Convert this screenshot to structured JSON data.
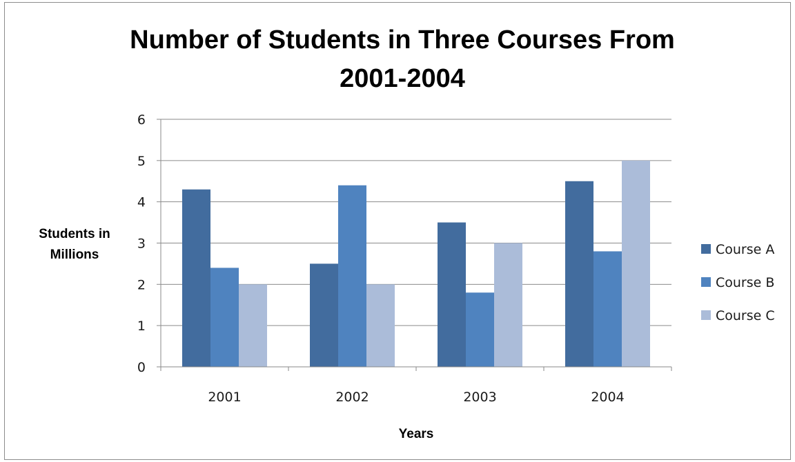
{
  "chart_data": {
    "type": "bar",
    "title_lines": [
      "Number of Students in Three Courses From",
      "2001-2004"
    ],
    "xlabel": "Years",
    "ylabel_lines": [
      "Students in",
      "Millions"
    ],
    "categories": [
      "2001",
      "2002",
      "2003",
      "2004"
    ],
    "series": [
      {
        "name": "Course A",
        "color": "#426c9e",
        "values": [
          4.3,
          2.5,
          3.5,
          4.5
        ]
      },
      {
        "name": "Course B",
        "color": "#4f83bf",
        "values": [
          2.4,
          4.4,
          1.8,
          2.8
        ]
      },
      {
        "name": "Course C",
        "color": "#abbcd9",
        "values": [
          2.0,
          2.0,
          3.0,
          5.0
        ]
      }
    ],
    "ylim": [
      0,
      6
    ],
    "yticks": [
      "0",
      "1",
      "2",
      "3",
      "4",
      "5",
      "6"
    ],
    "grid": true,
    "legend_position": "right"
  }
}
